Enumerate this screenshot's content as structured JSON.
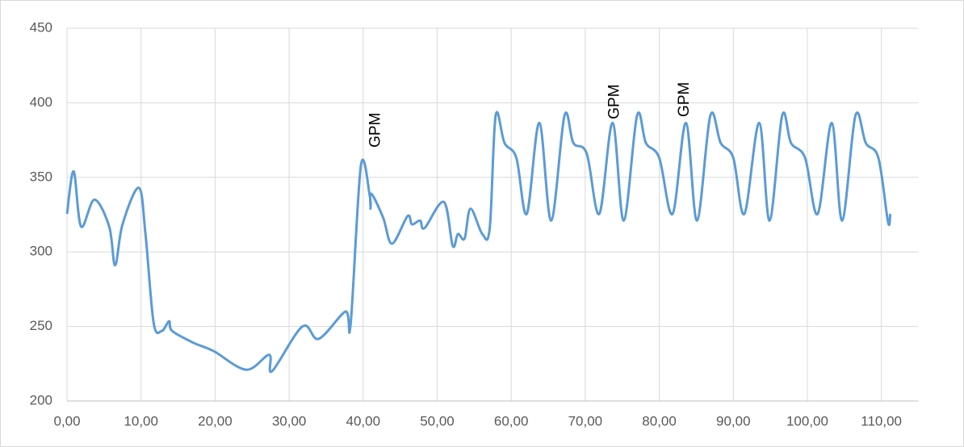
{
  "chart_data": {
    "type": "line",
    "x": [
      0,
      0.9,
      1.9,
      3.7,
      5.7,
      6.5,
      7.5,
      9.7,
      10.6,
      11.7,
      12.8,
      13.8,
      14.2,
      17.1,
      19.8,
      24.2,
      27.3,
      27.7,
      31.8,
      34.0,
      37.6,
      38.3,
      39.7,
      40.9,
      41.0,
      41.1,
      42.7,
      43.9,
      46.0,
      46.6,
      47.7,
      48.3,
      50.9,
      52.1,
      52.8,
      53.7,
      54.5,
      56.1,
      57.1,
      57.9,
      59.1,
      60.7,
      62.1,
      63.8,
      65.4,
      67.2,
      68.4,
      70.2,
      71.9,
      73.7,
      75.2,
      77.0,
      78.2,
      80.0,
      81.8,
      83.6,
      85.1,
      86.9,
      88.3,
      90.0,
      91.5,
      93.5,
      94.9,
      96.6,
      97.8,
      99.7,
      101.4,
      103.3,
      104.7,
      106.5,
      107.9,
      109.6,
      110.9,
      111.2
    ],
    "series": [
      {
        "color": "#5b9bd5",
        "values": [
          325.5,
          354,
          317,
          335,
          317,
          291,
          318.5,
          343,
          312,
          252.5,
          247,
          253.5,
          247,
          239,
          233.5,
          221,
          231,
          220,
          250,
          241.7,
          260,
          251,
          358,
          337.5,
          329,
          339,
          323,
          305.5,
          324,
          318.5,
          321,
          316,
          333.5,
          304,
          312,
          309,
          329,
          312,
          316,
          391.5,
          373,
          363,
          325.5,
          386.5,
          321,
          391.5,
          373,
          366,
          325.5,
          386.5,
          321,
          391.5,
          373,
          363,
          325.5,
          386.5,
          321,
          391.5,
          373,
          363,
          325.5,
          386.5,
          321,
          391.5,
          373,
          363,
          325.5,
          386.5,
          321,
          391.5,
          373,
          363,
          320,
          325.5
        ]
      }
    ],
    "xlim": [
      0,
      115
    ],
    "xticks": [
      {
        "value": 0,
        "label": "0,00"
      },
      {
        "value": 10,
        "label": "10,00"
      },
      {
        "value": 20,
        "label": "20,00"
      },
      {
        "value": 30,
        "label": "30,00"
      },
      {
        "value": 40,
        "label": "40,00"
      },
      {
        "value": 50,
        "label": "50,00"
      },
      {
        "value": 60,
        "label": "60,00"
      },
      {
        "value": 70,
        "label": "70,00"
      },
      {
        "value": 80,
        "label": "80,00"
      },
      {
        "value": 90,
        "label": "90,00"
      },
      {
        "value": 100,
        "label": "100,00"
      },
      {
        "value": 110,
        "label": "110,00"
      }
    ],
    "ylim": [
      200,
      450
    ],
    "yticks": [
      200,
      250,
      300,
      350,
      400,
      450
    ],
    "grid": true,
    "annotations": [
      {
        "text": "GPM",
        "x": 41.7,
        "y": 370
      },
      {
        "text": "GPM",
        "x": 74.0,
        "y": 389
      },
      {
        "text": "GPM",
        "x": 83.4,
        "y": 390.5
      }
    ]
  }
}
